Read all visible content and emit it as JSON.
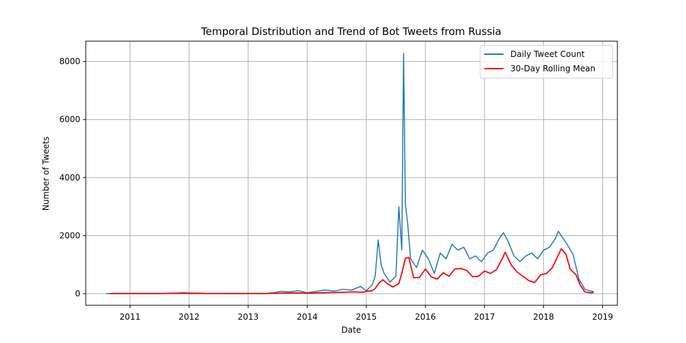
{
  "chart_data": {
    "type": "line",
    "title": "Temporal Distribution and Trend of Bot Tweets from Russia",
    "xlabel": "Date",
    "ylabel": "Number of Tweets",
    "xlim": [
      2010.25,
      2019.25
    ],
    "ylim": [
      -400,
      8700
    ],
    "x_ticks": [
      2011,
      2012,
      2013,
      2014,
      2015,
      2016,
      2017,
      2018,
      2019
    ],
    "x_tick_labels": [
      "2011",
      "2012",
      "2013",
      "2014",
      "2015",
      "2016",
      "2017",
      "2018",
      "2019"
    ],
    "y_ticks": [
      0,
      2000,
      4000,
      6000,
      8000
    ],
    "y_tick_labels": [
      "0",
      "2000",
      "4000",
      "6000",
      "8000"
    ],
    "grid": true,
    "legend_position": "top-right",
    "series": [
      {
        "name": "Daily Tweet Count",
        "color": "#1f77b4",
        "points": [
          [
            2010.6,
            5
          ],
          [
            2011.0,
            3
          ],
          [
            2011.5,
            5
          ],
          [
            2011.9,
            30
          ],
          [
            2012.3,
            10
          ],
          [
            2012.8,
            5
          ],
          [
            2013.3,
            5
          ],
          [
            2013.45,
            40
          ],
          [
            2013.55,
            80
          ],
          [
            2013.7,
            60
          ],
          [
            2013.85,
            100
          ],
          [
            2014.0,
            30
          ],
          [
            2014.15,
            80
          ],
          [
            2014.3,
            130
          ],
          [
            2014.45,
            90
          ],
          [
            2014.6,
            150
          ],
          [
            2014.75,
            120
          ],
          [
            2014.9,
            250
          ],
          [
            2015.0,
            100
          ],
          [
            2015.1,
            300
          ],
          [
            2015.15,
            600
          ],
          [
            2015.2,
            1850
          ],
          [
            2015.25,
            1000
          ],
          [
            2015.3,
            700
          ],
          [
            2015.4,
            400
          ],
          [
            2015.5,
            600
          ],
          [
            2015.55,
            3000
          ],
          [
            2015.6,
            1500
          ],
          [
            2015.63,
            8280
          ],
          [
            2015.66,
            3100
          ],
          [
            2015.7,
            2400
          ],
          [
            2015.75,
            1200
          ],
          [
            2015.85,
            900
          ],
          [
            2015.95,
            1500
          ],
          [
            2016.05,
            1200
          ],
          [
            2016.15,
            700
          ],
          [
            2016.25,
            1400
          ],
          [
            2016.35,
            1200
          ],
          [
            2016.45,
            1700
          ],
          [
            2016.55,
            1500
          ],
          [
            2016.65,
            1600
          ],
          [
            2016.75,
            1200
          ],
          [
            2016.85,
            1300
          ],
          [
            2016.95,
            1100
          ],
          [
            2017.05,
            1400
          ],
          [
            2017.15,
            1500
          ],
          [
            2017.25,
            1900
          ],
          [
            2017.32,
            2100
          ],
          [
            2017.4,
            1800
          ],
          [
            2017.5,
            1300
          ],
          [
            2017.6,
            1100
          ],
          [
            2017.7,
            1300
          ],
          [
            2017.8,
            1400
          ],
          [
            2017.9,
            1200
          ],
          [
            2018.0,
            1500
          ],
          [
            2018.1,
            1600
          ],
          [
            2018.2,
            1900
          ],
          [
            2018.25,
            2150
          ],
          [
            2018.33,
            1900
          ],
          [
            2018.4,
            1700
          ],
          [
            2018.5,
            1350
          ],
          [
            2018.6,
            500
          ],
          [
            2018.7,
            150
          ],
          [
            2018.8,
            90
          ],
          [
            2018.85,
            70
          ]
        ]
      },
      {
        "name": "30-Day Rolling Mean",
        "color": "#ff0000",
        "points": [
          [
            2010.66,
            5
          ],
          [
            2011.0,
            3
          ],
          [
            2011.5,
            5
          ],
          [
            2011.9,
            10
          ],
          [
            2012.3,
            5
          ],
          [
            2012.8,
            4
          ],
          [
            2013.3,
            5
          ],
          [
            2013.5,
            15
          ],
          [
            2013.7,
            20
          ],
          [
            2013.9,
            25
          ],
          [
            2014.0,
            15
          ],
          [
            2014.2,
            30
          ],
          [
            2014.4,
            40
          ],
          [
            2014.6,
            50
          ],
          [
            2014.8,
            60
          ],
          [
            2014.95,
            50
          ],
          [
            2015.0,
            80
          ],
          [
            2015.1,
            100
          ],
          [
            2015.15,
            180
          ],
          [
            2015.22,
            380
          ],
          [
            2015.28,
            480
          ],
          [
            2015.35,
            350
          ],
          [
            2015.45,
            230
          ],
          [
            2015.55,
            350
          ],
          [
            2015.6,
            700
          ],
          [
            2015.66,
            1220
          ],
          [
            2015.72,
            1250
          ],
          [
            2015.8,
            550
          ],
          [
            2015.9,
            560
          ],
          [
            2016.0,
            850
          ],
          [
            2016.1,
            580
          ],
          [
            2016.2,
            500
          ],
          [
            2016.3,
            720
          ],
          [
            2016.4,
            600
          ],
          [
            2016.5,
            850
          ],
          [
            2016.6,
            870
          ],
          [
            2016.7,
            800
          ],
          [
            2016.8,
            580
          ],
          [
            2016.9,
            600
          ],
          [
            2017.0,
            780
          ],
          [
            2017.1,
            700
          ],
          [
            2017.2,
            820
          ],
          [
            2017.3,
            1200
          ],
          [
            2017.35,
            1430
          ],
          [
            2017.45,
            1000
          ],
          [
            2017.55,
            750
          ],
          [
            2017.65,
            600
          ],
          [
            2017.75,
            450
          ],
          [
            2017.85,
            380
          ],
          [
            2017.95,
            650
          ],
          [
            2018.05,
            700
          ],
          [
            2018.15,
            900
          ],
          [
            2018.22,
            1200
          ],
          [
            2018.3,
            1550
          ],
          [
            2018.38,
            1350
          ],
          [
            2018.45,
            850
          ],
          [
            2018.55,
            650
          ],
          [
            2018.62,
            300
          ],
          [
            2018.7,
            60
          ],
          [
            2018.8,
            30
          ],
          [
            2018.85,
            40
          ]
        ]
      }
    ]
  }
}
